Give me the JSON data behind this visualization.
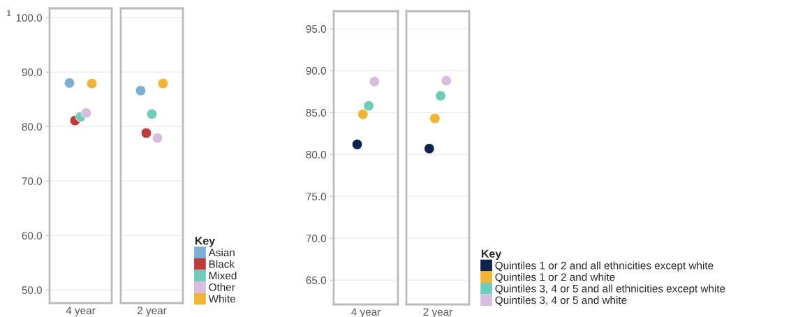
{
  "chart_data": [
    {
      "type": "scatter",
      "categories": [
        "4 year"
      ],
      "ylim": [
        47.6,
        101.7
      ],
      "yticks": [
        {
          "value": 50,
          "label": "50.0"
        },
        {
          "value": 60,
          "label": "60.0"
        },
        {
          "value": 70,
          "label": "70.0"
        },
        {
          "value": 80,
          "label": "80.0"
        },
        {
          "value": 90,
          "label": "90.0"
        },
        {
          "value": 100,
          "label": "100.0"
        }
      ],
      "grid": "y",
      "marker": "circle",
      "annotations": [
        "1"
      ],
      "series": [
        {
          "color": "#7bafd4",
          "values": [
            88.0
          ]
        },
        {
          "color": "#c0393b",
          "values": [
            81.1
          ]
        },
        {
          "color": "#6dcdb8",
          "values": [
            81.8
          ]
        },
        {
          "color": "#d9bddf",
          "values": [
            82.5
          ]
        },
        {
          "color": "#f2b533",
          "values": [
            87.9
          ]
        }
      ]
    },
    {
      "type": "scatter",
      "categories": [
        "2 year"
      ],
      "ylim": [
        47.6,
        101.7
      ],
      "yticks": [
        {
          "value": 50,
          "label": null
        },
        {
          "value": 60,
          "label": null
        },
        {
          "value": 70,
          "label": null
        },
        {
          "value": 80,
          "label": null
        },
        {
          "value": 90,
          "label": null
        },
        {
          "value": 100,
          "label": null
        }
      ],
      "grid": "y",
      "marker": "circle",
      "tick_labels": "x",
      "legend": "bottom right",
      "legend_title": "Key",
      "series": [
        {
          "name": "Asian",
          "color": "#7bafd4",
          "values": [
            86.6
          ]
        },
        {
          "name": "Black",
          "color": "#c0393b",
          "values": [
            78.8
          ]
        },
        {
          "name": "Mixed",
          "color": "#6dcdb8",
          "values": [
            82.3
          ]
        },
        {
          "name": "Other",
          "color": "#d9bddf",
          "values": [
            77.9
          ]
        },
        {
          "name": "White",
          "color": "#f2b533",
          "values": [
            87.9
          ]
        }
      ]
    },
    {
      "type": "scatter",
      "categories": [
        "4 year"
      ],
      "ylim": [
        62.1,
        97.1
      ],
      "yticks": [
        {
          "value": 65,
          "label": "65.0"
        },
        {
          "value": 70,
          "label": "70.0"
        },
        {
          "value": 75,
          "label": "75.0"
        },
        {
          "value": 80,
          "label": "80.0"
        },
        {
          "value": 85,
          "label": "85.0"
        },
        {
          "value": 90,
          "label": "90.0"
        },
        {
          "value": 95,
          "label": "95.0"
        }
      ],
      "grid": "y",
      "marker": "circle",
      "series": [
        {
          "color": "#0b2452",
          "values": [
            81.2
          ]
        },
        {
          "color": "#f2b533",
          "values": [
            84.8
          ]
        },
        {
          "color": "#6dcdb8",
          "values": [
            85.8
          ]
        },
        {
          "color": "#d9bddf",
          "values": [
            88.7
          ]
        }
      ]
    },
    {
      "type": "scatter",
      "categories": [
        "2 year"
      ],
      "ylim": [
        62.1,
        97.1
      ],
      "yticks": [
        {
          "value": 65,
          "label": null
        },
        {
          "value": 70,
          "label": null
        },
        {
          "value": 75,
          "label": null
        },
        {
          "value": 80,
          "label": null
        },
        {
          "value": 85,
          "label": null
        },
        {
          "value": 90,
          "label": null
        },
        {
          "value": 95,
          "label": null
        }
      ],
      "grid": "y",
      "marker": "circle",
      "tick_labels": "x",
      "legend": "bottom right",
      "legend_title": "Key",
      "series": [
        {
          "name": "Quintiles 1 or 2 and all ethnicities except white",
          "color": "#0b2452",
          "values": [
            80.7
          ]
        },
        {
          "name": "Quintiles 1 or 2 and white",
          "color": "#f2b533",
          "values": [
            84.3
          ]
        },
        {
          "name": "Quintiles 3, 4 or 5 and all ethnicities except white",
          "color": "#6dcdb8",
          "values": [
            87.0
          ]
        },
        {
          "name": "Quintiles 3, 4 or 5 and white",
          "color": "#d9bddf",
          "values": [
            88.8
          ]
        }
      ]
    }
  ]
}
